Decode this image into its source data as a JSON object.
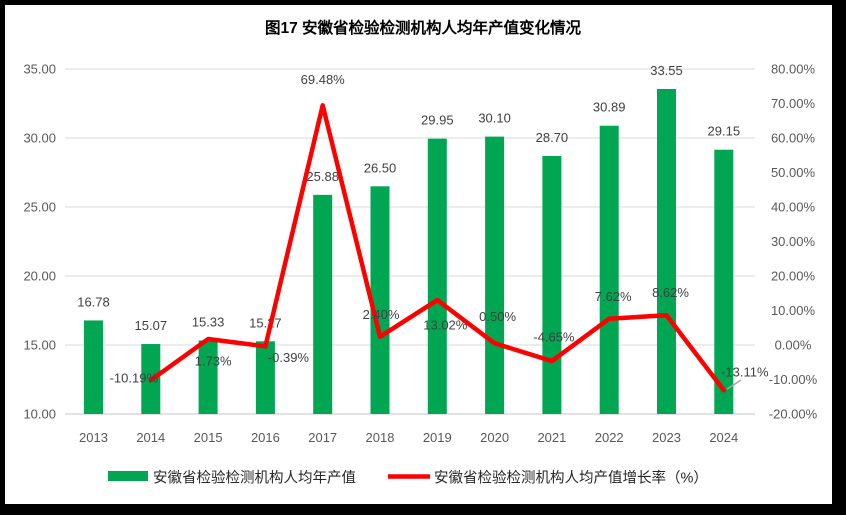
{
  "chart_data": {
    "type": "combo",
    "title": "图17 安徽省检验检测机构人均年产值变化情况",
    "categories": [
      "2013",
      "2014",
      "2015",
      "2016",
      "2017",
      "2018",
      "2019",
      "2020",
      "2021",
      "2022",
      "2023",
      "2024"
    ],
    "series": [
      {
        "name": "安徽省检验检测机构人均年产值",
        "type": "bar",
        "axis": "left",
        "color": "#00A651",
        "values": [
          16.78,
          15.07,
          15.33,
          15.27,
          25.88,
          26.5,
          29.95,
          30.1,
          28.7,
          30.89,
          33.55,
          29.15
        ],
        "labels": [
          "16.78",
          "15.07",
          "15.33",
          "15.27",
          "25.88",
          "26.50",
          "29.95",
          "30.10",
          "28.70",
          "30.89",
          "33.55",
          "29.15"
        ]
      },
      {
        "name": "安徽省检验检测机构人均产值增长率（%）",
        "type": "line",
        "axis": "right",
        "color": "#FF0000",
        "values": [
          null,
          -10.19,
          1.73,
          -0.39,
          69.48,
          2.4,
          13.02,
          0.5,
          -4.65,
          7.62,
          8.62,
          -13.11
        ],
        "labels": [
          "",
          "-10.19%",
          "1.73%",
          "-0.39%",
          "69.48%",
          "2.40%",
          "13.02%",
          "0.50%",
          "-4.65%",
          "7.62%",
          "8.62%",
          "-13.11%"
        ]
      }
    ],
    "left_axis": {
      "min": 10,
      "max": 35,
      "step": 5,
      "ticks": [
        "35.00",
        "30.00",
        "25.00",
        "20.00",
        "15.00",
        "10.00"
      ]
    },
    "right_axis": {
      "min": -20,
      "max": 80,
      "step": 10,
      "ticks": [
        "80.00%",
        "70.00%",
        "60.00%",
        "50.00%",
        "40.00%",
        "30.00%",
        "20.00%",
        "10.00%",
        "0.00%",
        "-10.00%",
        "-20.00%"
      ]
    },
    "grid": true,
    "legend_position": "bottom",
    "colors": {
      "grid": "#D9D9D9",
      "axis_line": "#C6C6C6",
      "tick_label": "#595959",
      "data_label": "#404040",
      "title": "#000000",
      "frame": "#000000",
      "leader_line": "#A6A6A6",
      "background": "#FFFFFF"
    }
  }
}
